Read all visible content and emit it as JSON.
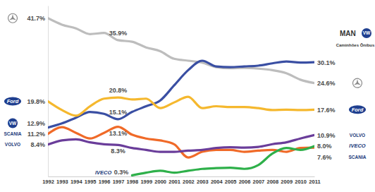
{
  "chart_data": {
    "type": "line",
    "x": [
      1992,
      1993,
      1994,
      1995,
      1996,
      1997,
      1998,
      1999,
      2000,
      2001,
      2002,
      2003,
      2004,
      2005,
      2006,
      2007,
      2008,
      2009,
      2010,
      2011
    ],
    "xlim": [
      1992,
      2011
    ],
    "xticks": [
      1992,
      1993,
      1994,
      1995,
      1996,
      1997,
      1998,
      1999,
      2000,
      2001,
      2002,
      2003,
      2004,
      2005,
      2006,
      2007,
      2008,
      2009,
      2010,
      2011
    ],
    "ylim": [
      0,
      45
    ],
    "tick_labels": "x",
    "data_labels": true,
    "annotations": [
      "MAN",
      "Caminhões Ônibus"
    ],
    "series": [
      {
        "color": "#bdbdbd",
        "values": [
          41.7,
          40.0,
          39.0,
          37.5,
          37.8,
          35.9,
          35.5,
          34.0,
          33.0,
          31.0,
          30.5,
          30.0,
          28.8,
          28.5,
          28.6,
          28.4,
          28.0,
          27.2,
          25.5,
          24.6
        ],
        "value_labels": [
          "41.7%",
          null,
          null,
          null,
          null,
          "35.9%",
          null,
          null,
          null,
          null,
          null,
          null,
          null,
          null,
          null,
          null,
          null,
          null,
          null,
          "24.6%"
        ]
      },
      {
        "name": "VW",
        "color": "#3a4fa3",
        "values": [
          12.9,
          14.0,
          15.5,
          17.0,
          16.5,
          15.1,
          17.0,
          18.5,
          20.0,
          24.0,
          28.0,
          30.5,
          29.0,
          28.8,
          29.0,
          29.2,
          29.8,
          30.3,
          30.0,
          30.1
        ],
        "value_labels": [
          "12.9%",
          null,
          null,
          null,
          null,
          "15.1%",
          null,
          null,
          null,
          null,
          null,
          null,
          null,
          null,
          null,
          null,
          null,
          null,
          null,
          "30.1%"
        ]
      },
      {
        "name": "Ford",
        "color": "#f5b82e",
        "values": [
          19.8,
          17.5,
          16.0,
          18.5,
          20.5,
          20.8,
          20.3,
          20.5,
          18.0,
          19.5,
          21.0,
          18.0,
          18.5,
          18.3,
          18.3,
          18.0,
          17.5,
          17.6,
          17.5,
          17.6
        ],
        "value_labels": [
          "19.8%",
          null,
          null,
          null,
          null,
          "20.8%",
          null,
          null,
          null,
          null,
          null,
          null,
          null,
          null,
          null,
          null,
          null,
          null,
          null,
          "17.6%"
        ]
      },
      {
        "name": "SCANIA",
        "color": "#f06a28",
        "values": [
          11.2,
          13.0,
          11.5,
          10.0,
          11.5,
          13.1,
          11.0,
          10.0,
          9.5,
          8.5,
          5.0,
          6.5,
          7.0,
          7.0,
          6.5,
          6.8,
          7.0,
          6.5,
          7.5,
          7.6
        ],
        "value_labels": [
          "11.2%",
          null,
          null,
          null,
          null,
          "13.1%",
          null,
          null,
          null,
          null,
          null,
          null,
          null,
          null,
          null,
          null,
          null,
          null,
          null,
          "7.6%"
        ]
      },
      {
        "name": "VOLVO",
        "color": "#6a3d9a",
        "values": [
          8.4,
          9.5,
          9.8,
          9.0,
          8.5,
          8.3,
          7.5,
          7.0,
          6.5,
          6.5,
          6.8,
          7.0,
          7.5,
          7.7,
          7.6,
          7.8,
          8.5,
          9.0,
          10.0,
          10.9
        ],
        "value_labels": [
          "8.4%",
          null,
          null,
          null,
          null,
          "8.3%",
          null,
          null,
          null,
          null,
          null,
          null,
          null,
          null,
          null,
          null,
          null,
          null,
          null,
          "10.9%"
        ]
      },
      {
        "name": "IVECO",
        "color": "#2eb04a",
        "values": [
          null,
          null,
          null,
          null,
          null,
          null,
          0.3,
          1.0,
          1.5,
          1.0,
          1.5,
          2.0,
          2.2,
          2.3,
          2.0,
          3.0,
          6.0,
          7.5,
          7.0,
          8.0
        ],
        "value_labels": [
          null,
          null,
          null,
          null,
          null,
          null,
          "0.3%",
          null,
          null,
          null,
          null,
          null,
          null,
          null,
          null,
          null,
          null,
          null,
          null,
          "8.0%"
        ]
      }
    ]
  }
}
